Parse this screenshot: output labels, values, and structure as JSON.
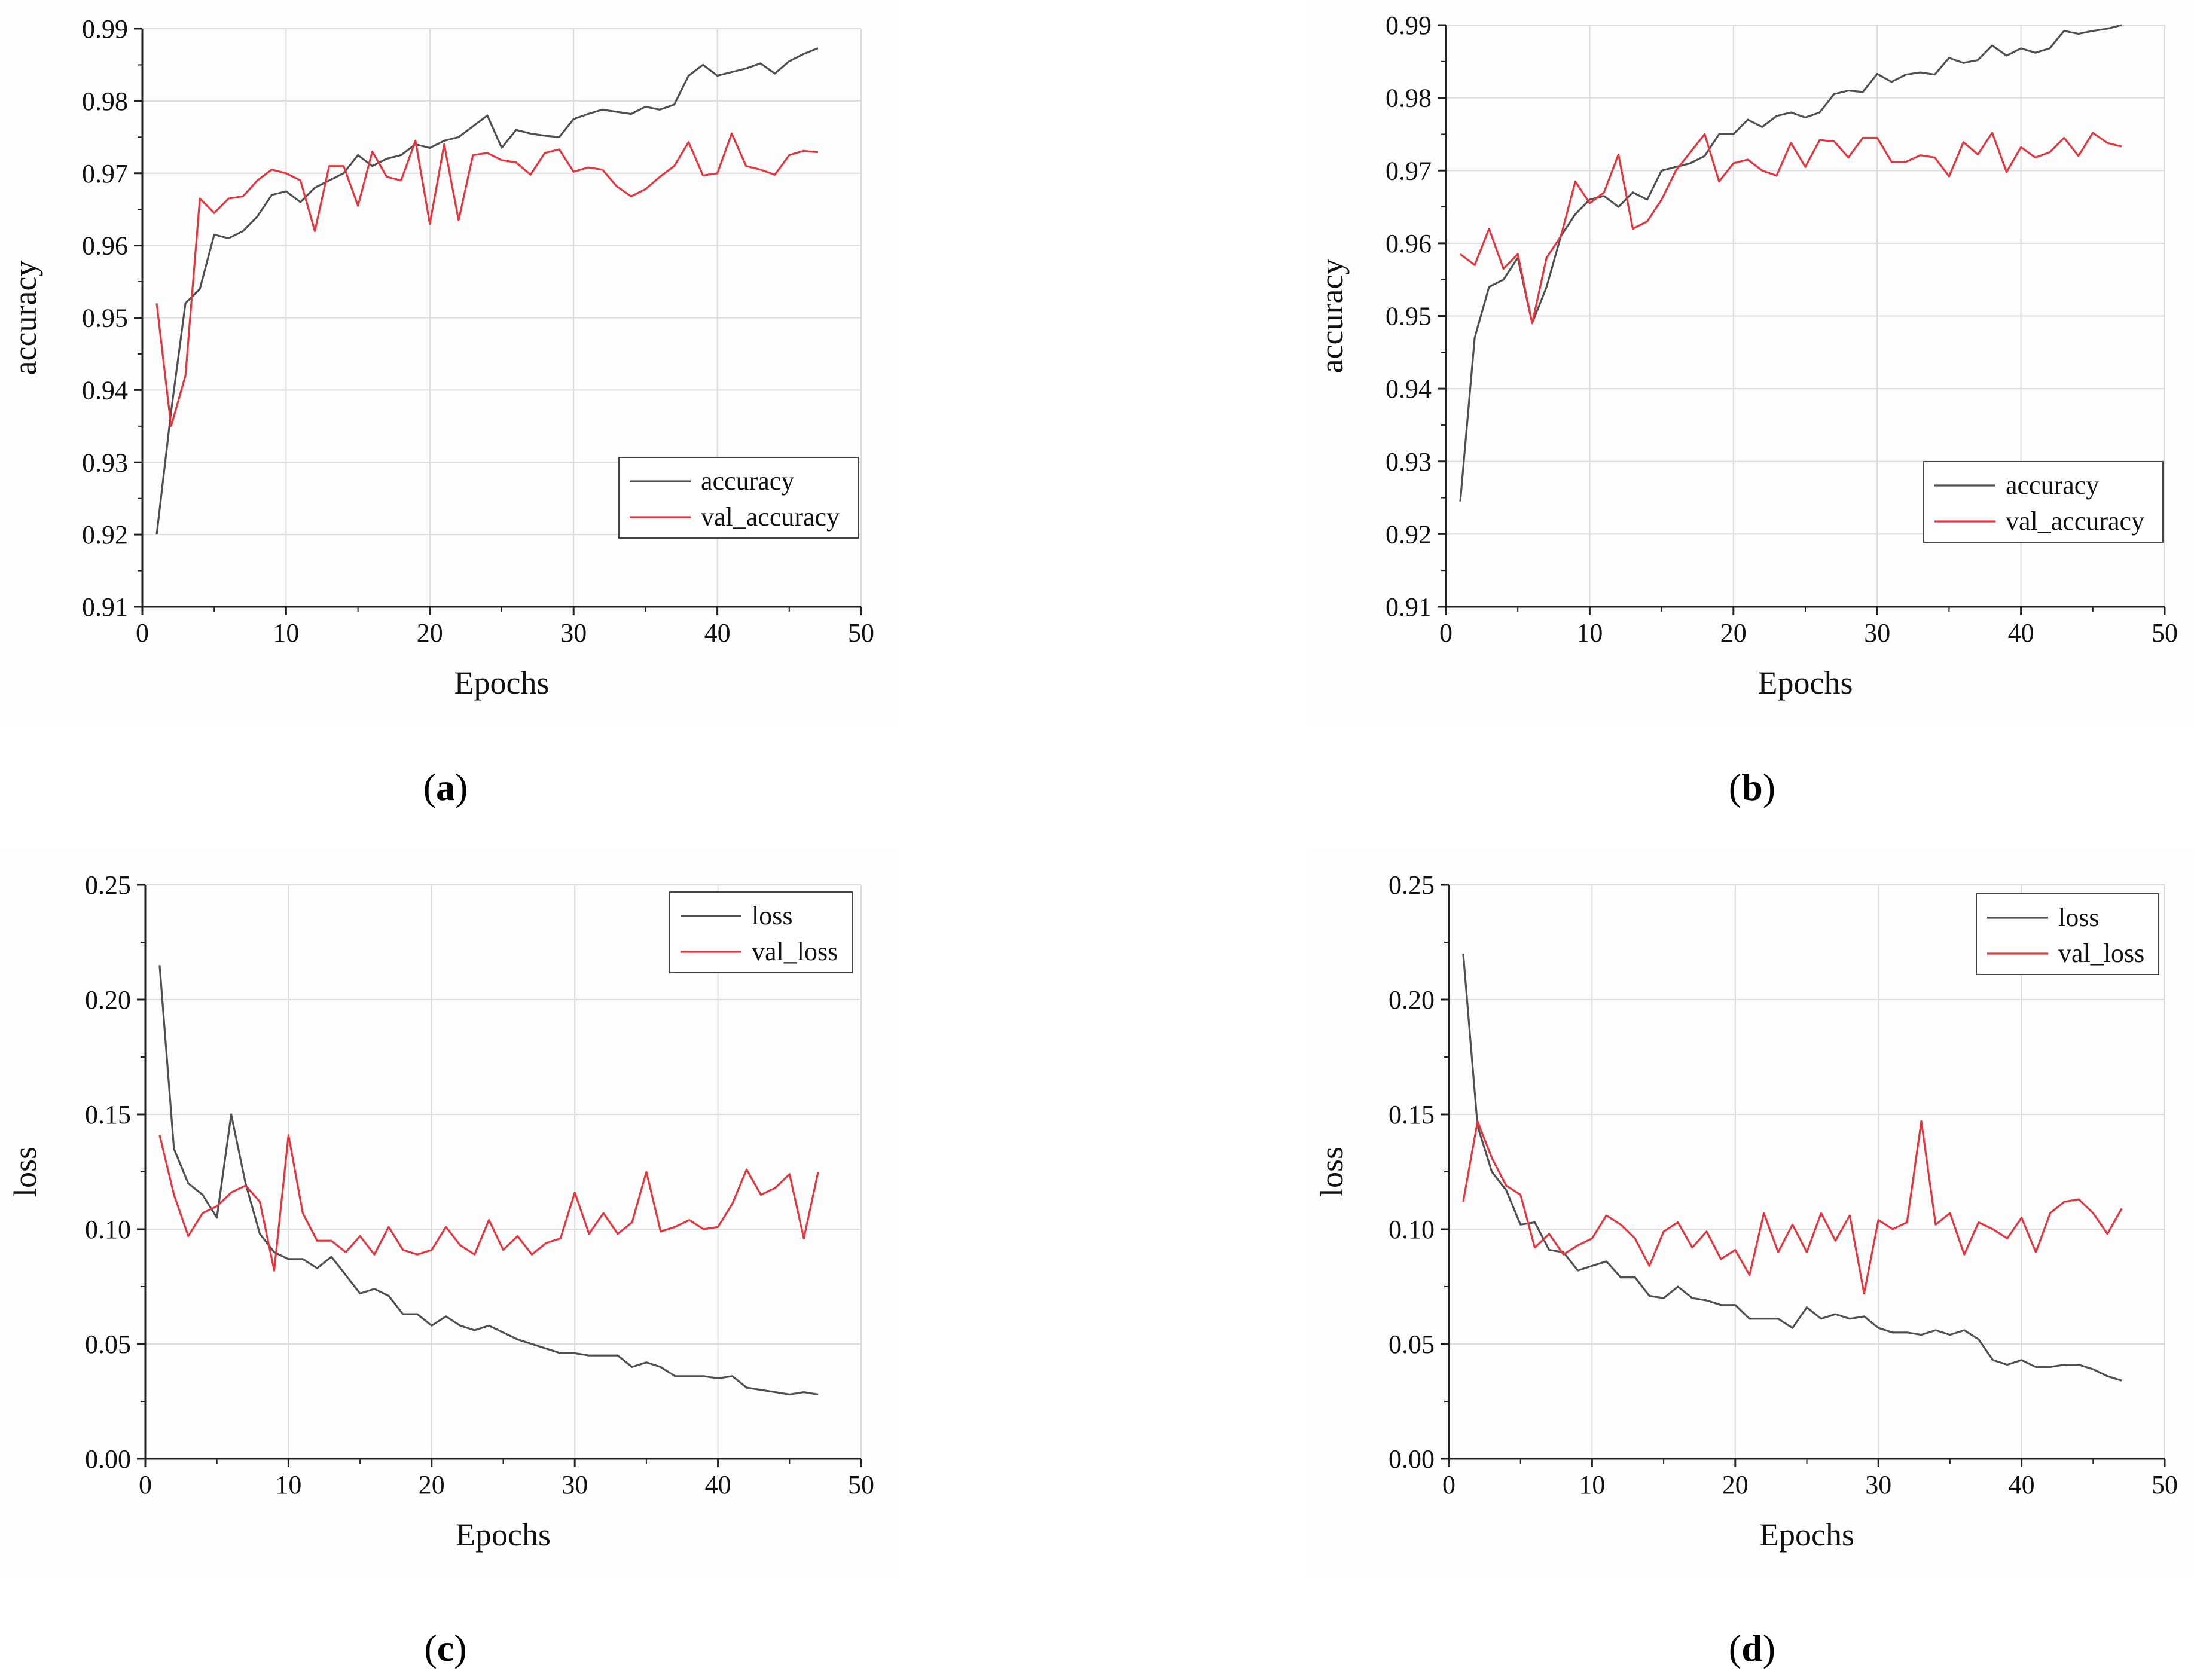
{
  "chart_data": [
    {
      "id": "a",
      "type": "line",
      "caption": "a",
      "xlabel": "Epochs",
      "ylabel": "accuracy",
      "xlim": [
        0,
        50
      ],
      "ylim": [
        0.91,
        0.99
      ],
      "xticks": [
        "0",
        "10",
        "20",
        "30",
        "40",
        "50"
      ],
      "yticks": [
        "0.91",
        "0.92",
        "0.93",
        "0.94",
        "0.95",
        "0.96",
        "0.97",
        "0.98",
        "0.99"
      ],
      "grid": true,
      "legend_position": "bottom-right",
      "x": [
        1,
        2,
        3,
        4,
        5,
        6,
        7,
        8,
        9,
        10,
        11,
        12,
        13,
        14,
        15,
        16,
        17,
        18,
        19,
        20,
        21,
        22,
        23,
        24,
        25,
        26,
        27,
        28,
        29,
        30,
        31,
        32,
        33,
        34,
        35,
        36,
        37,
        38,
        39,
        40,
        41,
        42,
        43,
        44,
        45,
        46,
        47
      ],
      "series": [
        {
          "name": "accuracy",
          "color": "#505050",
          "values": [
            0.92,
            0.937,
            0.952,
            0.954,
            0.9615,
            0.961,
            0.962,
            0.964,
            0.967,
            0.9675,
            0.966,
            0.968,
            0.969,
            0.97,
            0.9725,
            0.971,
            0.972,
            0.9725,
            0.974,
            0.9735,
            0.9745,
            0.975,
            0.9765,
            0.978,
            0.9735,
            0.976,
            0.9755,
            0.9752,
            0.975,
            0.9775,
            0.9782,
            0.9788,
            0.9785,
            0.9782,
            0.9792,
            0.9788,
            0.9795,
            0.9835,
            0.985,
            0.9835,
            0.984,
            0.9845,
            0.9852,
            0.9838,
            0.9855,
            0.9865,
            0.9873
          ]
        },
        {
          "name": "val_accuracy",
          "color": "#e8343c",
          "values": [
            0.952,
            0.935,
            0.942,
            0.9665,
            0.9645,
            0.9665,
            0.9668,
            0.969,
            0.9705,
            0.97,
            0.969,
            0.962,
            0.971,
            0.971,
            0.9655,
            0.973,
            0.9695,
            0.969,
            0.9745,
            0.963,
            0.974,
            0.9635,
            0.9725,
            0.9728,
            0.9718,
            0.9715,
            0.9698,
            0.9728,
            0.9733,
            0.9702,
            0.9708,
            0.9705,
            0.9682,
            0.9668,
            0.9678,
            0.9695,
            0.971,
            0.9743,
            0.9697,
            0.97,
            0.9755,
            0.971,
            0.9705,
            0.9698,
            0.9725,
            0.9731,
            0.9729
          ]
        }
      ]
    },
    {
      "id": "b",
      "type": "line",
      "caption": "b",
      "xlabel": "Epochs",
      "ylabel": "accuracy",
      "xlim": [
        0,
        50
      ],
      "ylim": [
        0.91,
        0.99
      ],
      "xticks": [
        "0",
        "10",
        "20",
        "30",
        "40",
        "50"
      ],
      "yticks": [
        "0.91",
        "0.92",
        "0.93",
        "0.94",
        "0.95",
        "0.96",
        "0.97",
        "0.98",
        "0.99"
      ],
      "grid": true,
      "legend_position": "bottom-right",
      "x": [
        1,
        2,
        3,
        4,
        5,
        6,
        7,
        8,
        9,
        10,
        11,
        12,
        13,
        14,
        15,
        16,
        17,
        18,
        19,
        20,
        21,
        22,
        23,
        24,
        25,
        26,
        27,
        28,
        29,
        30,
        31,
        32,
        33,
        34,
        35,
        36,
        37,
        38,
        39,
        40,
        41,
        42,
        43,
        44,
        45,
        46,
        47
      ],
      "series": [
        {
          "name": "accuracy",
          "color": "#505050",
          "values": [
            0.9245,
            0.947,
            0.954,
            0.955,
            0.958,
            0.949,
            0.954,
            0.961,
            0.964,
            0.966,
            0.9665,
            0.965,
            0.967,
            0.966,
            0.97,
            0.9705,
            0.971,
            0.972,
            0.975,
            0.975,
            0.977,
            0.976,
            0.9775,
            0.978,
            0.9773,
            0.978,
            0.9805,
            0.981,
            0.9808,
            0.9833,
            0.9822,
            0.9832,
            0.9835,
            0.9832,
            0.9855,
            0.9848,
            0.9852,
            0.9872,
            0.9858,
            0.9868,
            0.9862,
            0.9868,
            0.9892,
            0.9888,
            0.9892,
            0.9895,
            0.99
          ]
        },
        {
          "name": "val_accuracy",
          "color": "#e8343c",
          "values": [
            0.9585,
            0.957,
            0.962,
            0.9565,
            0.9585,
            0.949,
            0.958,
            0.961,
            0.9685,
            0.9655,
            0.967,
            0.9722,
            0.962,
            0.963,
            0.966,
            0.97,
            0.9725,
            0.975,
            0.9685,
            0.971,
            0.9715,
            0.97,
            0.9693,
            0.9738,
            0.9705,
            0.9742,
            0.974,
            0.9718,
            0.9745,
            0.9745,
            0.9712,
            0.9712,
            0.9721,
            0.9718,
            0.9692,
            0.9739,
            0.9722,
            0.9752,
            0.9698,
            0.9732,
            0.9718,
            0.9725,
            0.9745,
            0.972,
            0.9752,
            0.9738,
            0.9733
          ]
        }
      ]
    },
    {
      "id": "c",
      "type": "line",
      "caption": "c",
      "xlabel": "Epochs",
      "ylabel": "loss",
      "xlim": [
        0,
        50
      ],
      "ylim": [
        0.0,
        0.25
      ],
      "xticks": [
        "0",
        "10",
        "20",
        "30",
        "40",
        "50"
      ],
      "yticks": [
        "0.00",
        "0.05",
        "0.10",
        "0.15",
        "0.20",
        "0.25"
      ],
      "grid": true,
      "legend_position": "top-right",
      "x": [
        1,
        2,
        3,
        4,
        5,
        6,
        7,
        8,
        9,
        10,
        11,
        12,
        13,
        14,
        15,
        16,
        17,
        18,
        19,
        20,
        21,
        22,
        23,
        24,
        25,
        26,
        27,
        28,
        29,
        30,
        31,
        32,
        33,
        34,
        35,
        36,
        37,
        38,
        39,
        40,
        41,
        42,
        43,
        44,
        45,
        46,
        47
      ],
      "series": [
        {
          "name": "loss",
          "color": "#505050",
          "values": [
            0.215,
            0.135,
            0.12,
            0.115,
            0.105,
            0.15,
            0.12,
            0.098,
            0.09,
            0.087,
            0.087,
            0.083,
            0.088,
            0.08,
            0.072,
            0.074,
            0.071,
            0.063,
            0.063,
            0.058,
            0.062,
            0.058,
            0.056,
            0.058,
            0.055,
            0.052,
            0.05,
            0.048,
            0.046,
            0.046,
            0.045,
            0.045,
            0.045,
            0.04,
            0.042,
            0.04,
            0.036,
            0.036,
            0.036,
            0.035,
            0.036,
            0.031,
            0.03,
            0.029,
            0.028,
            0.029,
            0.028
          ]
        },
        {
          "name": "val_loss",
          "color": "#e8343c",
          "values": [
            0.141,
            0.115,
            0.097,
            0.107,
            0.11,
            0.116,
            0.119,
            0.112,
            0.082,
            0.141,
            0.107,
            0.095,
            0.095,
            0.09,
            0.097,
            0.089,
            0.101,
            0.091,
            0.089,
            0.091,
            0.101,
            0.093,
            0.089,
            0.104,
            0.091,
            0.097,
            0.089,
            0.094,
            0.096,
            0.116,
            0.098,
            0.107,
            0.098,
            0.103,
            0.125,
            0.099,
            0.101,
            0.104,
            0.1,
            0.101,
            0.111,
            0.126,
            0.115,
            0.118,
            0.124,
            0.096,
            0.125
          ]
        }
      ]
    },
    {
      "id": "d",
      "type": "line",
      "caption": "d",
      "xlabel": "Epochs",
      "ylabel": "loss",
      "xlim": [
        0,
        50
      ],
      "ylim": [
        0.0,
        0.25
      ],
      "xticks": [
        "0",
        "10",
        "20",
        "30",
        "40",
        "50"
      ],
      "yticks": [
        "0.00",
        "0.05",
        "0.10",
        "0.15",
        "0.20",
        "0.25"
      ],
      "grid": true,
      "legend_position": "top-right",
      "x": [
        1,
        2,
        3,
        4,
        5,
        6,
        7,
        8,
        9,
        10,
        11,
        12,
        13,
        14,
        15,
        16,
        17,
        18,
        19,
        20,
        21,
        22,
        23,
        24,
        25,
        26,
        27,
        28,
        29,
        30,
        31,
        32,
        33,
        34,
        35,
        36,
        37,
        38,
        39,
        40,
        41,
        42,
        43,
        44,
        45,
        46,
        47
      ],
      "series": [
        {
          "name": "loss",
          "color": "#505050",
          "values": [
            0.22,
            0.145,
            0.125,
            0.117,
            0.102,
            0.103,
            0.091,
            0.09,
            0.082,
            0.084,
            0.086,
            0.079,
            0.079,
            0.071,
            0.07,
            0.075,
            0.07,
            0.069,
            0.067,
            0.067,
            0.061,
            0.061,
            0.061,
            0.057,
            0.066,
            0.061,
            0.063,
            0.061,
            0.062,
            0.057,
            0.055,
            0.055,
            0.054,
            0.056,
            0.054,
            0.056,
            0.052,
            0.043,
            0.041,
            0.043,
            0.04,
            0.04,
            0.041,
            0.041,
            0.039,
            0.036,
            0.034
          ]
        },
        {
          "name": "val_loss",
          "color": "#e8343c",
          "values": [
            0.112,
            0.147,
            0.131,
            0.119,
            0.115,
            0.092,
            0.098,
            0.089,
            0.093,
            0.096,
            0.106,
            0.102,
            0.096,
            0.084,
            0.099,
            0.103,
            0.092,
            0.099,
            0.087,
            0.091,
            0.08,
            0.107,
            0.09,
            0.102,
            0.09,
            0.107,
            0.095,
            0.106,
            0.072,
            0.104,
            0.1,
            0.103,
            0.147,
            0.102,
            0.107,
            0.089,
            0.103,
            0.1,
            0.096,
            0.105,
            0.09,
            0.107,
            0.112,
            0.113,
            0.107,
            0.098,
            0.109
          ]
        }
      ]
    }
  ]
}
